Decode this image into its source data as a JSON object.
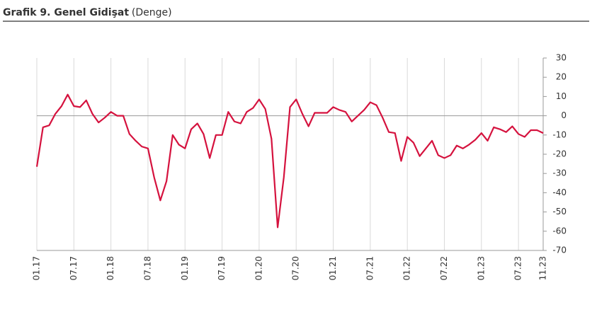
{
  "chart_data": {
    "type": "line",
    "title": "Grafik 9. Genel Gidişat",
    "subtitle": "(Denge)",
    "categories": [
      "01.17",
      null,
      null,
      null,
      null,
      null,
      "07.17",
      null,
      null,
      null,
      null,
      null,
      "01.18",
      null,
      null,
      null,
      null,
      null,
      "07.18",
      null,
      null,
      null,
      null,
      null,
      "01.19",
      null,
      null,
      null,
      null,
      null,
      "07.19",
      null,
      null,
      null,
      null,
      null,
      "01.20",
      null,
      null,
      null,
      null,
      null,
      "07.20",
      null,
      null,
      null,
      null,
      null,
      "01.21",
      null,
      null,
      null,
      null,
      null,
      "07.21",
      null,
      null,
      null,
      null,
      null,
      "01.22",
      null,
      null,
      null,
      null,
      null,
      "07.22",
      null,
      null,
      null,
      null,
      null,
      "01.23",
      null,
      null,
      null,
      null,
      null,
      "07.23",
      null,
      null,
      null,
      "11.23"
    ],
    "series": [
      {
        "color": "#d5123e",
        "values": [
          -26.5,
          -6,
          -5,
          1,
          5,
          11,
          5,
          4.5,
          8,
          1,
          -3.5,
          -1,
          2,
          0,
          0,
          -9.5,
          -13,
          -16,
          -17,
          -32,
          -44,
          -34,
          -10,
          -15,
          -17,
          -7,
          -4,
          -9.5,
          -22,
          -10,
          -10,
          2,
          -3,
          -4,
          2,
          4,
          8.5,
          3.5,
          -12,
          -58,
          -32,
          4.5,
          8.5,
          1,
          -5.5,
          1.5,
          1.5,
          1.5,
          4.5,
          3,
          2,
          -3,
          0,
          3,
          7,
          5.5,
          -1,
          -8.5,
          -9,
          -23.5,
          -11,
          -14,
          -21,
          -17,
          -13,
          -20.5,
          -22,
          -20.5,
          -15.5,
          -17,
          -15,
          -12.5,
          -9,
          -13,
          -6,
          -7,
          -8.5,
          -5.5,
          -9.5,
          -11,
          -7.5,
          -7.5,
          -9
        ]
      }
    ],
    "ylim": [
      -70,
      30
    ],
    "yticks": [
      30,
      20,
      10,
      0,
      -10,
      -20,
      -30,
      -40,
      -50,
      -60,
      -70
    ],
    "grid": true
  }
}
